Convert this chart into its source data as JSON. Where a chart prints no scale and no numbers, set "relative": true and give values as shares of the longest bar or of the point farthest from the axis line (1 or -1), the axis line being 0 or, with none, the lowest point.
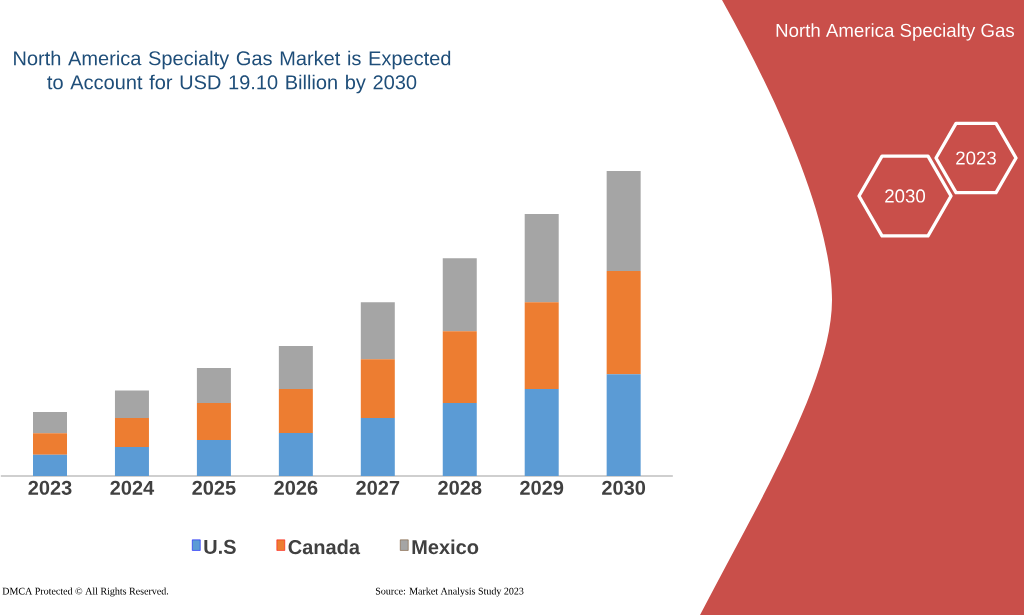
{
  "chart_data": {
    "type": "bar",
    "title": "North America Specialty Gas Market is Expected to Account for USD 19.10 Billion by 2030",
    "categories": [
      "2023",
      "2024",
      "2025",
      "2026",
      "2027",
      "2028",
      "2029",
      "2030"
    ],
    "stacked": true,
    "relative": true,
    "legend": "bottom",
    "series": [
      {
        "name": "U.S",
        "color": "#5b9bd5",
        "values": [
          0.07,
          0.095,
          0.118,
          0.141,
          0.19,
          0.239,
          0.285,
          0.334
        ]
      },
      {
        "name": "Canada",
        "color": "#ed7d31",
        "values": [
          0.07,
          0.095,
          0.121,
          0.144,
          0.193,
          0.236,
          0.285,
          0.338
        ]
      },
      {
        "name": "Mexico",
        "color": "#a5a5a5",
        "values": [
          0.07,
          0.09,
          0.115,
          0.141,
          0.187,
          0.239,
          0.289,
          0.328
        ]
      }
    ],
    "annotations": [
      "North America Specialty Gas",
      "2030",
      "2023",
      "DMCA Protected © All Rights Reserved.",
      "Source: Market Analysis Study 2023"
    ]
  }
}
